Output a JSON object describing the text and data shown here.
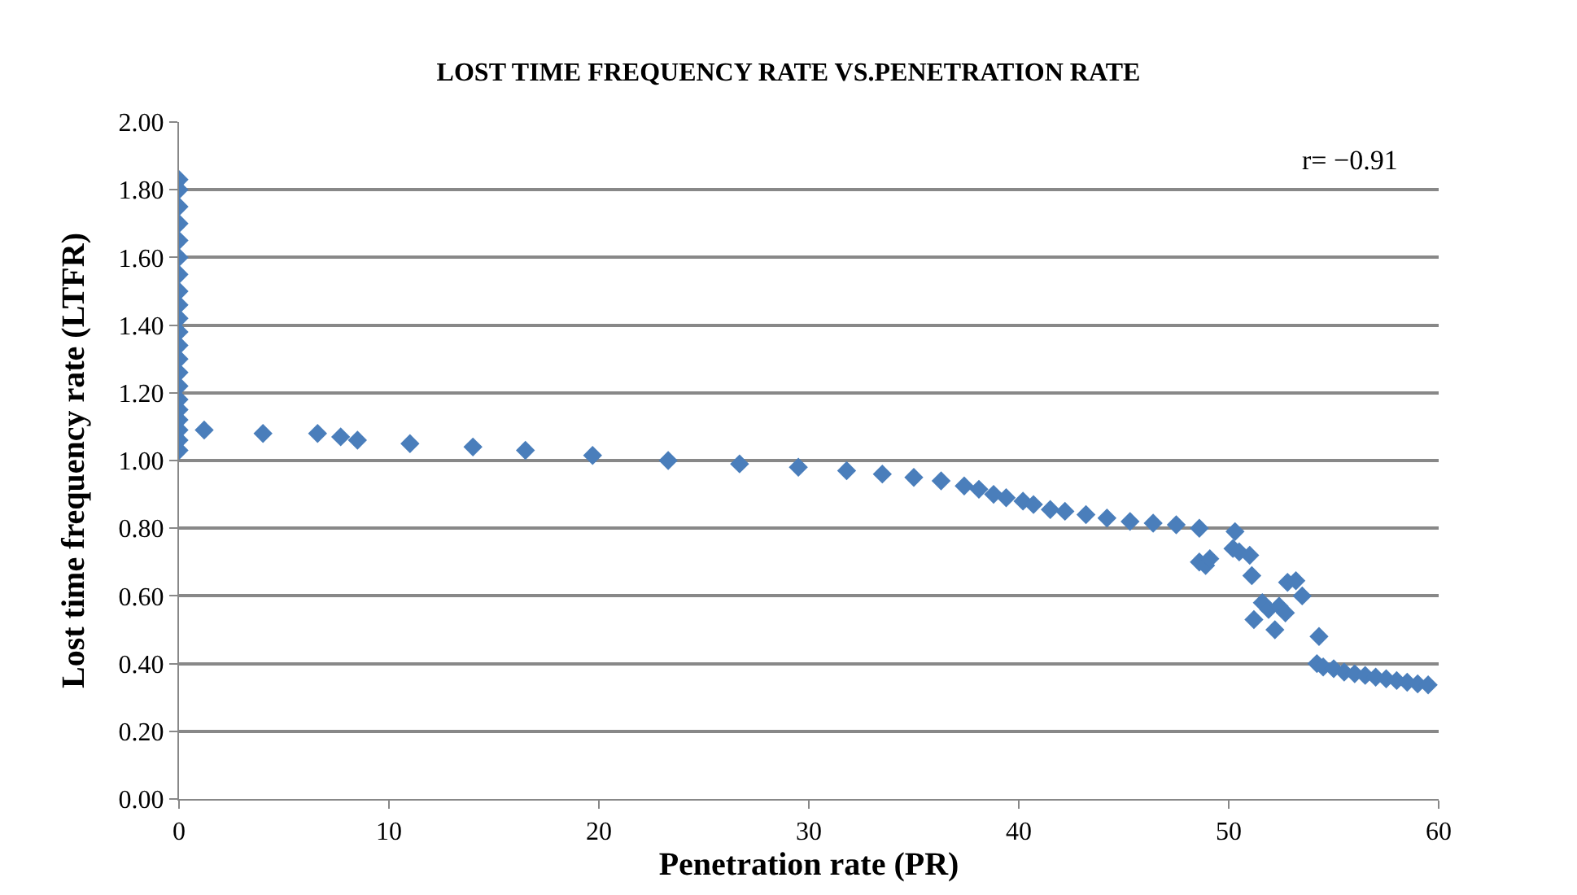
{
  "chart_data": {
    "type": "scatter",
    "title": "LOST TIME FREQUENCY RATE VS.PENETRATION RATE",
    "xlabel": "Penetration rate (PR)",
    "ylabel": "Lost time frequency rate (LTFR)",
    "annotations": [
      "r= −0.91"
    ],
    "x": [
      0,
      0,
      0,
      0,
      0,
      0,
      0,
      0,
      0,
      0,
      0,
      0,
      0,
      0,
      0,
      0,
      0,
      0,
      0,
      0,
      0,
      1.2,
      4,
      6.6,
      7.7,
      8.5,
      11,
      14,
      16.5,
      19.7,
      23.3,
      26.7,
      29.5,
      31.8,
      33.5,
      35,
      36.3,
      37.4,
      38.1,
      38.8,
      39.4,
      40.2,
      40.7,
      41.5,
      42.2,
      43.2,
      44.2,
      45.3,
      46.4,
      47.5,
      48.6,
      48.6,
      48.9,
      49.1,
      50.3,
      50.2,
      50.5,
      51,
      51.1,
      51.6,
      51.2,
      51.9,
      52.2,
      52.4,
      52.8,
      53.2,
      53.5,
      52.7,
      54.3,
      54.2,
      54.5,
      55,
      55.5,
      56,
      56.5,
      57,
      57.5,
      58,
      58.5,
      59,
      59.5
    ],
    "series": [
      {
        "color": "#4a7ebb",
        "values": [
          1.03,
          1.06,
          1.09,
          1.12,
          1.15,
          1.18,
          1.22,
          1.26,
          1.3,
          1.34,
          1.38,
          1.42,
          1.46,
          1.5,
          1.55,
          1.6,
          1.65,
          1.7,
          1.75,
          1.8,
          1.83,
          1.09,
          1.08,
          1.08,
          1.07,
          1.06,
          1.05,
          1.04,
          1.03,
          1.015,
          1.0,
          0.99,
          0.98,
          0.97,
          0.96,
          0.95,
          0.94,
          0.925,
          0.915,
          0.9,
          0.89,
          0.88,
          0.87,
          0.855,
          0.85,
          0.84,
          0.83,
          0.82,
          0.815,
          0.81,
          0.8,
          0.7,
          0.69,
          0.71,
          0.79,
          0.74,
          0.73,
          0.72,
          0.66,
          0.58,
          0.53,
          0.56,
          0.5,
          0.57,
          0.64,
          0.645,
          0.6,
          0.55,
          0.48,
          0.4,
          0.39,
          0.385,
          0.375,
          0.37,
          0.365,
          0.36,
          0.355,
          0.35,
          0.345,
          0.34,
          0.337
        ]
      }
    ],
    "xlim": [
      0,
      60
    ],
    "xticks": [
      0,
      10,
      20,
      30,
      40,
      50,
      60
    ],
    "ylim": [
      0,
      2
    ],
    "yticks": [
      {
        "value": 0,
        "label": "0.00"
      },
      {
        "value": 0.2,
        "label": "0.20"
      },
      {
        "value": 0.4,
        "label": "0.40"
      },
      {
        "value": 0.6,
        "label": "0.60"
      },
      {
        "value": 0.8,
        "label": "0.80"
      },
      {
        "value": 1,
        "label": "1.00"
      },
      {
        "value": 1.2,
        "label": "1.20"
      },
      {
        "value": 1.4,
        "label": "1.40"
      },
      {
        "value": 1.6,
        "label": "1.60"
      },
      {
        "value": 1.8,
        "label": "1.80"
      },
      {
        "value": 2,
        "label": "2.00"
      }
    ],
    "grid": "y",
    "marker": "diamond"
  }
}
